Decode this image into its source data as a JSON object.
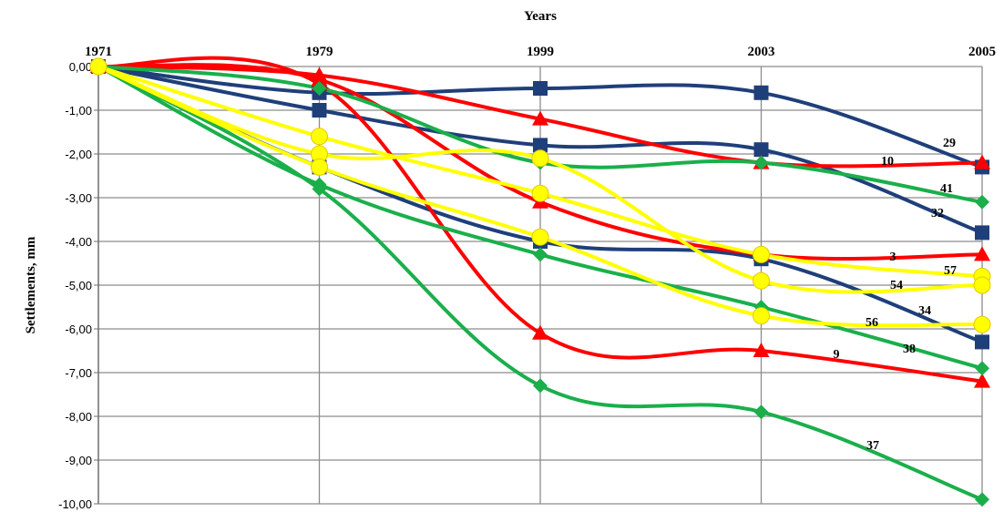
{
  "chart_data": {
    "type": "line",
    "xlabel": "Years",
    "ylabel": "Settlements, mm",
    "categories": [
      "1971",
      "1979",
      "1999",
      "2003",
      "2005"
    ],
    "ylim": [
      -10,
      0
    ],
    "y_ticks": [
      "0,00",
      "-1,00",
      "-2,00",
      "-3,00",
      "-4,00",
      "-5,00",
      "-6,00",
      "-7,00",
      "-8,00",
      "-9,00",
      "-10,00"
    ],
    "grid": true,
    "x_axis_position": "top",
    "series": [
      {
        "name": "29",
        "color": "#1F3F7A",
        "marker": "square",
        "values": [
          0,
          -0.6,
          -0.5,
          -0.6,
          -2.3
        ]
      },
      {
        "name": "32",
        "color": "#1F3F7A",
        "marker": "square",
        "values": [
          0,
          -1.0,
          -1.8,
          -1.9,
          -3.8
        ]
      },
      {
        "name": "34",
        "color": "#1F3F7A",
        "marker": "square",
        "values": [
          0,
          -2.3,
          -4.0,
          -4.4,
          -6.3
        ]
      },
      {
        "name": "10",
        "color": "#FF0000",
        "marker": "triangle",
        "values": [
          0,
          -0.2,
          -1.2,
          -2.2,
          -2.2
        ]
      },
      {
        "name": "3",
        "color": "#FF0000",
        "marker": "triangle",
        "values": [
          0,
          -0.3,
          -3.1,
          -4.3,
          -4.3
        ]
      },
      {
        "name": "9",
        "color": "#FF0000",
        "marker": "triangle",
        "values": [
          0,
          -0.4,
          -6.1,
          -6.5,
          -7.2
        ]
      },
      {
        "name": "41",
        "color": "#1AAF4B",
        "marker": "diamond",
        "values": [
          0,
          -0.5,
          -2.2,
          -2.2,
          -3.1
        ]
      },
      {
        "name": "38",
        "color": "#1AAF4B",
        "marker": "diamond",
        "values": [
          0,
          -2.7,
          -4.3,
          -5.5,
          -6.9
        ]
      },
      {
        "name": "37",
        "color": "#1AAF4B",
        "marker": "diamond",
        "values": [
          0,
          -2.8,
          -7.3,
          -7.9,
          -9.9
        ]
      },
      {
        "name": "57",
        "color": "#FFFF00",
        "marker": "circle",
        "values": [
          0,
          -1.6,
          -2.9,
          -4.3,
          -4.8
        ]
      },
      {
        "name": "54",
        "color": "#FFFF00",
        "marker": "circle",
        "values": [
          0,
          -2.0,
          -2.1,
          -4.9,
          -5.0
        ]
      },
      {
        "name": "56",
        "color": "#FFFF00",
        "marker": "circle",
        "values": [
          0,
          -2.3,
          -3.9,
          -5.7,
          -5.9
        ]
      }
    ]
  }
}
